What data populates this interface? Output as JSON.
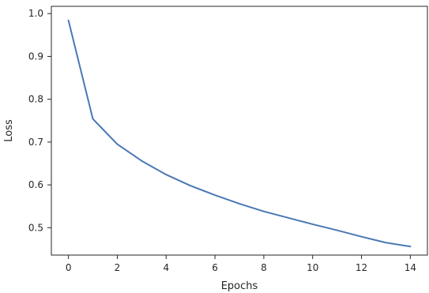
{
  "chart_data": {
    "type": "line",
    "title": "",
    "xlabel": "Epochs",
    "ylabel": "Loss",
    "xlim": [
      -0.7,
      14.7
    ],
    "ylim": [
      0.436,
      1.017
    ],
    "x_ticks": [
      0,
      2,
      4,
      6,
      8,
      10,
      12,
      14
    ],
    "y_ticks": [
      0.5,
      0.6,
      0.7,
      0.8,
      0.9,
      1.0
    ],
    "x_tick_labels": [
      "0",
      "2",
      "4",
      "6",
      "8",
      "10",
      "12",
      "14"
    ],
    "y_tick_labels": [
      "0.5",
      "0.6",
      "0.7",
      "0.8",
      "0.9",
      "1.0"
    ],
    "grid": false,
    "series": [
      {
        "color": "#4a78b5",
        "x": [
          0,
          1,
          2,
          3,
          4,
          5,
          6,
          7,
          8,
          9,
          10,
          11,
          12,
          13,
          14
        ],
        "y": [
          0.984,
          0.754,
          0.695,
          0.656,
          0.624,
          0.598,
          0.576,
          0.556,
          0.538,
          0.523,
          0.508,
          0.494,
          0.479,
          0.465,
          0.456
        ]
      }
    ]
  }
}
